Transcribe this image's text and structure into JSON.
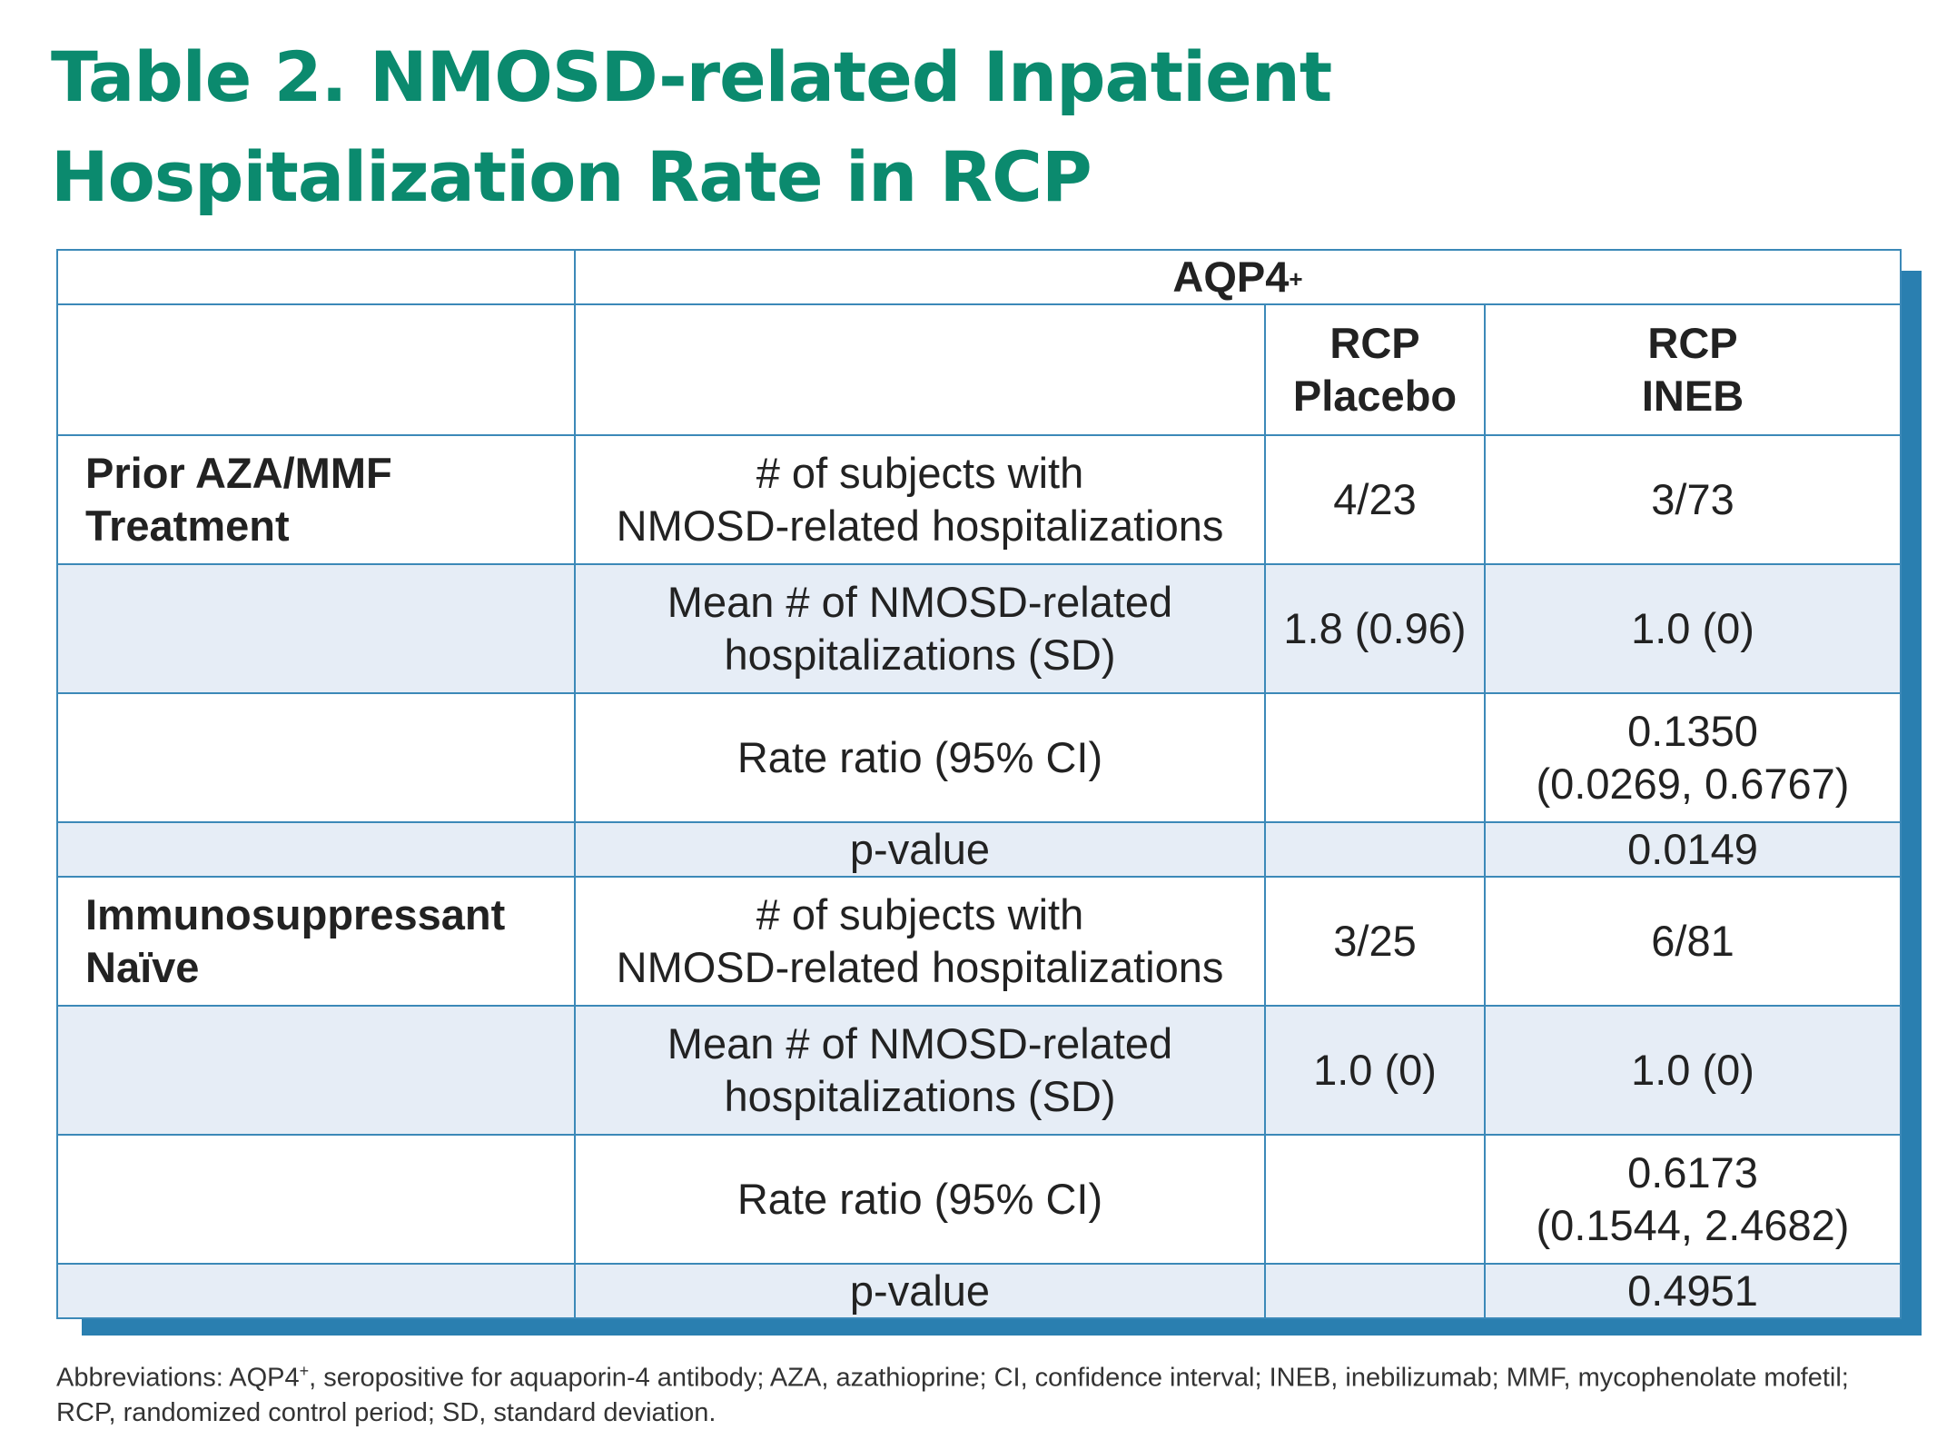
{
  "title": "Table 2. NMOSD-related Inpatient Hospitalization Rate in RCP",
  "table": {
    "group_header": "AQP4",
    "group_header_sup": "+",
    "col_placebo_line1": "RCP",
    "col_placebo_line2": "Placebo",
    "col_ineb_line1": "RCP",
    "col_ineb_line2": "INEB",
    "sections": [
      {
        "label_line1": "Prior AZA/MMF",
        "label_line2": "Treatment",
        "rows": [
          {
            "measure_line1": "# of subjects with",
            "measure_line2": "NMOSD-related hospitalizations",
            "placebo": "4/23",
            "ineb_line1": "3/73",
            "ineb_line2": ""
          },
          {
            "measure_line1": "Mean # of NMOSD-related",
            "measure_line2": "hospitalizations (SD)",
            "placebo": "1.8 (0.96)",
            "ineb_line1": "1.0 (0)",
            "ineb_line2": ""
          },
          {
            "measure_line1": "Rate ratio (95% CI)",
            "measure_line2": "",
            "placebo": "",
            "ineb_line1": "0.1350",
            "ineb_line2": "(0.0269, 0.6767)"
          },
          {
            "measure_line1": "p-value",
            "measure_line2": "",
            "placebo": "",
            "ineb_line1": "0.0149",
            "ineb_line2": ""
          }
        ]
      },
      {
        "label_line1": "Immunosuppressant",
        "label_line2": "Naïve",
        "rows": [
          {
            "measure_line1": "# of subjects with",
            "measure_line2": "NMOSD-related hospitalizations",
            "placebo": "3/25",
            "ineb_line1": "6/81",
            "ineb_line2": ""
          },
          {
            "measure_line1": "Mean # of NMOSD-related",
            "measure_line2": "hospitalizations (SD)",
            "placebo": "1.0 (0)",
            "ineb_line1": "1.0 (0)",
            "ineb_line2": ""
          },
          {
            "measure_line1": "Rate ratio (95% CI)",
            "measure_line2": "",
            "placebo": "",
            "ineb_line1": "0.6173",
            "ineb_line2": "(0.1544, 2.4682)"
          },
          {
            "measure_line1": "p-value",
            "measure_line2": "",
            "placebo": "",
            "ineb_line1": "0.4951",
            "ineb_line2": ""
          }
        ]
      }
    ]
  },
  "footnote": {
    "prefix": "Abbreviations: AQP4",
    "sup": "+",
    "rest": ", seropositive for aquaporin-4 antibody; AZA, azathioprine; CI, confidence interval; INEB, inebilizumab; MMF, mycophenolate mofetil; RCP, randomized control period; SD, standard deviation."
  },
  "colors": {
    "title": "#0b8a6e",
    "border": "#3c89b8",
    "shadow": "#2a7fb0",
    "shaded_row": "#e6edf6"
  }
}
